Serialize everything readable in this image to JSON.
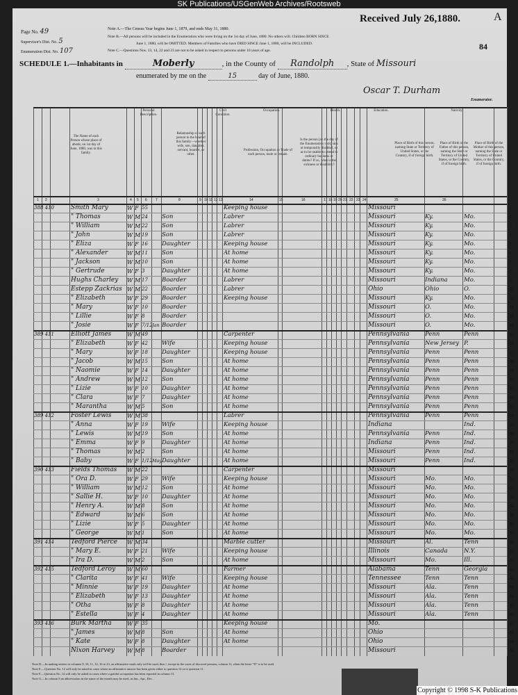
{
  "watermark_top": "SK Publications/USGenWeb Archives/Rootsweb",
  "copyright": "Copyright © 1998 S-K Publications",
  "header": {
    "page_no_label": "Page No.",
    "page_no": "49",
    "supervisor_label": "Supervisor's Dist. No.",
    "supervisor": "5",
    "enumeration_label": "Enumeration Dist. No.",
    "enumeration": "107",
    "note_a": "Note A.—The Census Year begins June 1, 1879, and ends May 31, 1880.",
    "note_b": "Note B.—All persons will be included in the Enumeration who were living on the 1st day of June, 1880. No others will. Children BORN SINCE",
    "note_b2": "June 1, 1880, will be OMITTED. Members of Families who have DIED SINCE June 1, 1880, will be INCLUDED.",
    "note_c": "Note C.—Questions Nos. 13, 14, 22 and 23 are not to be asked in respect to persons under 10 years of age.",
    "received": "Received July 26,1880.",
    "corner_letter": "A",
    "sheet_number": "84",
    "schedule_label": "SCHEDULE 1.—Inhabitants in",
    "place": "Moberly",
    "county_label": ", in the County of",
    "county": "Randolph",
    "state_label": ", State of",
    "state": "Missouri",
    "enumerated_label": "enumerated by me on the",
    "day": "15",
    "date_suffix": "day of June, 1880.",
    "enumerator_signature": "Oscar T. Durham",
    "enumerator_label": "Enumerator."
  },
  "column_headers": {
    "name": "The Name of each Person whose place of abode, on 1st day of June, 1880, was in this family.",
    "personal": "Personal Description.",
    "relationship": "Relationship of each person to the head of this family—whether wife, son, daughter, servant, boarder, or other.",
    "civil": "Civil Condition.",
    "occupation": "Occupation.",
    "occupation_desc": "Profession, Occupation or Trade of each person, male or female.",
    "health": "Health.",
    "health_desc": "Is the person [on the day of the Enumerator's visit] sick or temporarily disabled, so as to be unable to attend to ordinary business or duties? If so, what is the sickness or disability?",
    "education": "Education.",
    "nativity": "Nativity.",
    "birth_person": "Place of Birth of this person, naming State or Territory of United States, or the Country, if of foreign birth.",
    "birth_father": "Place of Birth of the Father of this person, naming the State or Territory of United States, or the Country, if of foreign birth.",
    "birth_mother": "Place of Birth of the Mother of this person, naming the State or Territory of United States, or the Country, if of foreign birth.",
    "numbers": [
      "1",
      "2",
      "3",
      "4",
      "5",
      "6",
      "7",
      "8",
      "9",
      "10",
      "11",
      "12",
      "13",
      "14",
      "15",
      "16",
      "17",
      "18",
      "19",
      "20",
      "21",
      "22",
      "23",
      "24",
      "25",
      "26"
    ]
  },
  "rows": [
    {
      "dw": "388 410",
      "name": "Smith Mary",
      "c": "W",
      "s": "F",
      "a": "55",
      "rel": "",
      "occ": "Keeping house",
      "bp": "Missouri",
      "fb": "",
      "mb": ""
    },
    {
      "name": "\" Thomas",
      "c": "W",
      "s": "M",
      "a": "24",
      "rel": "Son",
      "occ": "Labrer",
      "bp": "Missouri",
      "fb": "Ky.",
      "mb": "Mo."
    },
    {
      "name": "\" William",
      "c": "W",
      "s": "M",
      "a": "22",
      "rel": "Son",
      "occ": "Labrer",
      "bp": "Missouri",
      "fb": "Ky.",
      "mb": "Mo."
    },
    {
      "name": "\" John",
      "c": "W",
      "s": "M",
      "a": "19",
      "rel": "Son",
      "occ": "Labrer",
      "bp": "Missouri",
      "fb": "Ky.",
      "mb": "Mo."
    },
    {
      "name": "\" Eliza",
      "c": "W",
      "s": "F",
      "a": "16",
      "rel": "Daughter",
      "occ": "Keeping house",
      "bp": "Missouri",
      "fb": "Ky.",
      "mb": "Mo."
    },
    {
      "name": "\" Alexander",
      "c": "W",
      "s": "M",
      "a": "11",
      "rel": "Son",
      "occ": "At home",
      "bp": "Missouri",
      "fb": "Ky.",
      "mb": "Mo."
    },
    {
      "name": "\" Jackson",
      "c": "W",
      "s": "M",
      "a": "10",
      "rel": "Son",
      "occ": "At home",
      "bp": "Missouri",
      "fb": "Ky.",
      "mb": "Mo."
    },
    {
      "name": "\" Gertrude",
      "c": "W",
      "s": "F",
      "a": "3",
      "rel": "Daughter",
      "occ": "At home",
      "bp": "Missouri",
      "fb": "Ky.",
      "mb": "Mo."
    },
    {
      "name": "Hughs Charley",
      "c": "W",
      "s": "M",
      "a": "17",
      "rel": "Boarder",
      "occ": "Labrer",
      "bp": "Missouri",
      "fb": "Indiana",
      "mb": "Mo."
    },
    {
      "name": "Estepp Zackrias",
      "c": "W",
      "s": "M",
      "a": "22",
      "rel": "Boarder",
      "occ": "Labrer",
      "bp": "Ohio",
      "fb": "Ohio",
      "mb": "O."
    },
    {
      "name": "\" Elizabeth",
      "c": "W",
      "s": "F",
      "a": "29",
      "rel": "Boarder",
      "occ": "Keeping house",
      "bp": "Missouri",
      "fb": "Ky.",
      "mb": "Mo."
    },
    {
      "name": "\" Mary",
      "c": "W",
      "s": "F",
      "a": "10",
      "rel": "Boarder",
      "occ": "",
      "bp": "Missouri",
      "fb": "O.",
      "mb": "Mo."
    },
    {
      "name": "\" Lillie",
      "c": "W",
      "s": "F",
      "a": "8",
      "rel": "Boarder",
      "occ": "",
      "bp": "Missouri",
      "fb": "O.",
      "mb": "Mo."
    },
    {
      "name": "\" Josie",
      "c": "W",
      "s": "F",
      "a": "7/12",
      "m": "Jan",
      "rel": "Boarder",
      "occ": "",
      "bp": "Missouri",
      "fb": "O.",
      "mb": "Mo."
    },
    {
      "dw": "389 411",
      "name": "Elliott James",
      "c": "W",
      "s": "M",
      "a": "49",
      "rel": "",
      "occ": "Carpenter",
      "bp": "Pennsylvania",
      "fb": "Penn",
      "mb": "Penn"
    },
    {
      "name": "\" Elizabeth",
      "c": "W",
      "s": "F",
      "a": "42",
      "rel": "Wife",
      "occ": "Keeping house",
      "bp": "Pennsylvania",
      "fb": "New Jersey",
      "mb": "P."
    },
    {
      "name": "\" Mary",
      "c": "W",
      "s": "F",
      "a": "18",
      "rel": "Daughter",
      "occ": "Keeping house",
      "bp": "Pennsylvania",
      "fb": "Penn",
      "mb": "Penn"
    },
    {
      "name": "\" Jacob",
      "c": "W",
      "s": "M",
      "a": "15",
      "rel": "Son",
      "occ": "At home",
      "bp": "Pennsylvania",
      "fb": "Penn",
      "mb": "Penn"
    },
    {
      "name": "\" Naomie",
      "c": "W",
      "s": "F",
      "a": "14",
      "rel": "Daughter",
      "occ": "At home",
      "bp": "Pennsylvania",
      "fb": "Penn",
      "mb": "Penn"
    },
    {
      "name": "\" Andrew",
      "c": "W",
      "s": "M",
      "a": "12",
      "rel": "Son",
      "occ": "At home",
      "bp": "Pennsylvania",
      "fb": "Penn",
      "mb": "Penn"
    },
    {
      "name": "\" Lizie",
      "c": "W",
      "s": "F",
      "a": "10",
      "rel": "Daughter",
      "occ": "At home",
      "bp": "Pennsylvania",
      "fb": "Penn",
      "mb": "Penn"
    },
    {
      "name": "\" Clara",
      "c": "W",
      "s": "F",
      "a": "7",
      "rel": "Daughter",
      "occ": "At home",
      "bp": "Pennsylvania",
      "fb": "Penn",
      "mb": "Penn"
    },
    {
      "name": "\" Marantha",
      "c": "W",
      "s": "M",
      "a": "5",
      "rel": "Son",
      "occ": "At home",
      "bp": "Pennsylvania",
      "fb": "Penn",
      "mb": "Penn"
    },
    {
      "dw": "389 412",
      "name": "Foster Lewis",
      "c": "W",
      "s": "M",
      "a": "38",
      "rel": "",
      "occ": "Labrer",
      "bp": "Pennsylvania",
      "fb": "Penn",
      "mb": "Penn"
    },
    {
      "name": "\" Anna",
      "c": "W",
      "s": "F",
      "a": "19",
      "rel": "Wife",
      "occ": "Keeping house",
      "bp": "Indiana",
      "fb": "",
      "mb": "Ind."
    },
    {
      "name": "\" Lewis",
      "c": "W",
      "s": "M",
      "a": "19",
      "rel": "Son",
      "occ": "At home",
      "bp": "Pennsylvania",
      "fb": "Penn",
      "mb": "Ind."
    },
    {
      "name": "\" Emma",
      "c": "W",
      "s": "F",
      "a": "9",
      "rel": "Daughter",
      "occ": "At home",
      "bp": "Indiana",
      "fb": "Penn",
      "mb": "Ind."
    },
    {
      "name": "\" Thomas",
      "c": "W",
      "s": "M",
      "a": "2",
      "rel": "Son",
      "occ": "At home",
      "bp": "Missouri",
      "fb": "Penn",
      "mb": "Ind."
    },
    {
      "name": "\" Baby",
      "c": "W",
      "s": "F",
      "a": "1/12",
      "m": "May",
      "rel": "Daughter",
      "occ": "At home",
      "bp": "Missouri",
      "fb": "Penn",
      "mb": "Ind."
    },
    {
      "dw": "390 413",
      "name": "Fields Thomas",
      "c": "W",
      "s": "M",
      "a": "22",
      "rel": "",
      "occ": "Carpenter",
      "bp": "Missouri",
      "fb": "",
      "mb": ""
    },
    {
      "name": "\" Ora D.",
      "c": "W",
      "s": "F",
      "a": "29",
      "rel": "Wife",
      "occ": "Keeping house",
      "bp": "Missouri",
      "fb": "Mo.",
      "mb": "Mo."
    },
    {
      "name": "\" William",
      "c": "W",
      "s": "M",
      "a": "12",
      "rel": "Son",
      "occ": "At home",
      "bp": "Missouri",
      "fb": "Mo.",
      "mb": "Mo."
    },
    {
      "name": "\" Sallie H.",
      "c": "W",
      "s": "F",
      "a": "10",
      "rel": "Daughter",
      "occ": "At home",
      "bp": "Missouri",
      "fb": "Mo.",
      "mb": "Mo."
    },
    {
      "name": "\" Henry A.",
      "c": "W",
      "s": "M",
      "a": "8",
      "rel": "Son",
      "occ": "At home",
      "bp": "Missouri",
      "fb": "Mo.",
      "mb": "Mo."
    },
    {
      "name": "\" Edward",
      "c": "W",
      "s": "M",
      "a": "6",
      "rel": "Son",
      "occ": "At home",
      "bp": "Missouri",
      "fb": "Mo.",
      "mb": "Mo."
    },
    {
      "name": "\" Lizie",
      "c": "W",
      "s": "F",
      "a": "5",
      "rel": "Daughter",
      "occ": "At home",
      "bp": "Missouri",
      "fb": "Mo.",
      "mb": "Mo."
    },
    {
      "name": "\" George",
      "c": "W",
      "s": "M",
      "a": "1",
      "rel": "Son",
      "occ": "At home",
      "bp": "Missouri",
      "fb": "Mo.",
      "mb": "Mo."
    },
    {
      "dw": "391 414",
      "name": "Tedford Pierce",
      "c": "W",
      "s": "M",
      "a": "34",
      "rel": "",
      "occ": "Marble cutter",
      "bp": "Missouri",
      "fb": "Al.",
      "mb": "Tenn"
    },
    {
      "name": "\" Mary E.",
      "c": "W",
      "s": "F",
      "a": "21",
      "rel": "Wife",
      "occ": "Keeping house",
      "bp": "Illinois",
      "fb": "Canada",
      "mb": "N.Y."
    },
    {
      "name": "\" Ira D.",
      "c": "W",
      "s": "M",
      "a": "2",
      "rel": "Son",
      "occ": "At home",
      "bp": "Missouri",
      "fb": "Mo.",
      "mb": "Ill."
    },
    {
      "dw": "392 415",
      "name": "Tedford Leroy",
      "c": "W",
      "s": "M",
      "a": "60",
      "rel": "",
      "occ": "Farmer",
      "bp": "Alabama",
      "fb": "Tenn",
      "mb": "Georgia"
    },
    {
      "name": "\" Clarita",
      "c": "W",
      "s": "F",
      "a": "41",
      "rel": "Wife",
      "occ": "Keeping house",
      "bp": "Tennessee",
      "fb": "Tenn",
      "mb": "Tenn"
    },
    {
      "name": "\" Minnie",
      "c": "W",
      "s": "F",
      "a": "19",
      "rel": "Daughter",
      "occ": "At home",
      "bp": "Missouri",
      "fb": "Ala.",
      "mb": "Tenn"
    },
    {
      "name": "\" Elizabeth",
      "c": "W",
      "s": "F",
      "a": "13",
      "rel": "Daughter",
      "occ": "At home",
      "bp": "Missouri",
      "fb": "Ala.",
      "mb": "Tenn"
    },
    {
      "name": "\" Otha",
      "c": "W",
      "s": "F",
      "a": "8",
      "rel": "Daughter",
      "occ": "At home",
      "bp": "Missouri",
      "fb": "Ala.",
      "mb": "Tenn"
    },
    {
      "name": "\" Estella",
      "c": "W",
      "s": "F",
      "a": "4",
      "rel": "Daughter",
      "occ": "At home",
      "bp": "Missouri",
      "fb": "Ala.",
      "mb": "Tenn"
    },
    {
      "dw": "393 416",
      "name": "Burk Martha",
      "c": "W",
      "s": "F",
      "a": "35",
      "rel": "",
      "occ": "Keeping house",
      "bp": "Mo.",
      "fb": "",
      "mb": ""
    },
    {
      "name": "\" James",
      "c": "W",
      "s": "M",
      "a": "8",
      "rel": "Son",
      "occ": "At home",
      "bp": "Ohio",
      "fb": "",
      "mb": ""
    },
    {
      "name": "\" Kate",
      "c": "W",
      "s": "F",
      "a": "8",
      "rel": "Daughter",
      "occ": "At home",
      "bp": "Ohio",
      "fb": "",
      "mb": ""
    },
    {
      "name": "Nixon Harvey",
      "c": "W",
      "s": "M",
      "a": "8",
      "rel": "Boarder",
      "occ": "",
      "bp": "Missouri",
      "fb": "",
      "mb": ""
    }
  ],
  "footnotes": [
    "Note D.—In making entries in columns 9, 10, 11, 12, 16 to 23, an affirmative mark only will be used, thus /, except in the cases of divorced persons, column 11, when the letter \"D\" is to be used.",
    "Note E.—Question No. 12 will only be asked in cases where an affirmative answer has been given either to question 12 or to question 11.",
    "Note F.—Question No. 14 will only be asked in cases where a gainful occupation has been reported in column 13.",
    "Note G.—In column 9 an abbreviation in the name of the month may be used, as Jan., Apr., Dec."
  ]
}
